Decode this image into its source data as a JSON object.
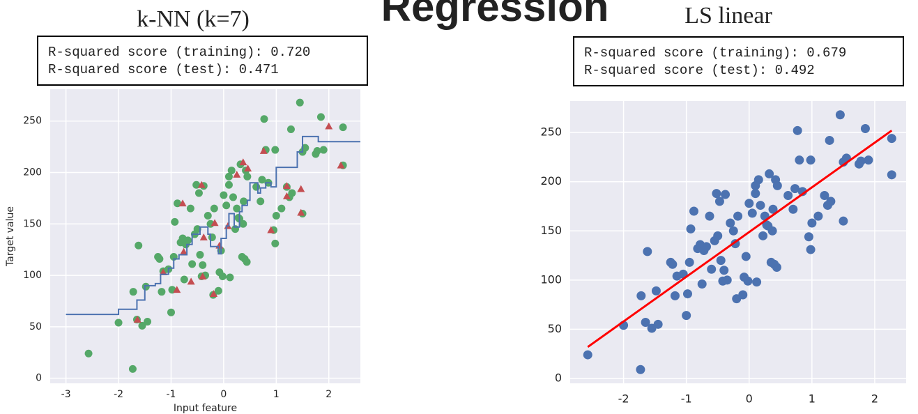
{
  "title": "Regression",
  "chart_data": [
    {
      "type": "scatter",
      "title": "k-NN (k=7)",
      "annotations": [
        "R-squared score (training): 0.720",
        "R-squared score (test): 0.471"
      ],
      "x_label": "Input feature",
      "y_label": "Target value",
      "xlim": [
        -3.3,
        2.6
      ],
      "ylim": [
        -5,
        281
      ],
      "xticks": [
        -3,
        -2,
        -1,
        0,
        1,
        2
      ],
      "yticks": [
        0,
        50,
        100,
        150,
        200,
        250
      ],
      "grid": true,
      "series": [
        {
          "kind": "scatter",
          "marker": "circle",
          "color": "#55a868",
          "x": [
            -2.57,
            -2.0,
            -1.73,
            -1.72,
            -1.65,
            -1.62,
            -1.55,
            -1.48,
            -1.45,
            -1.25,
            -1.22,
            -1.18,
            -1.15,
            -1.05,
            -1.0,
            -0.98,
            -0.95,
            -0.93,
            -0.88,
            -0.82,
            -0.78,
            -0.75,
            -0.72,
            -0.68,
            -0.63,
            -0.6,
            -0.55,
            -0.52,
            -0.5,
            -0.47,
            -0.45,
            -0.42,
            -0.4,
            -0.38,
            -0.35,
            -0.3,
            -0.25,
            -0.22,
            -0.2,
            -0.18,
            -0.1,
            -0.08,
            -0.05,
            -0.02,
            0.0,
            0.05,
            0.1,
            0.1,
            0.12,
            0.15,
            0.18,
            0.22,
            0.25,
            0.28,
            0.3,
            0.32,
            0.35,
            0.37,
            0.38,
            0.4,
            0.42,
            0.44,
            0.45,
            0.62,
            0.7,
            0.73,
            0.77,
            0.8,
            0.85,
            0.95,
            0.98,
            0.98,
            1.0,
            1.1,
            1.2,
            1.25,
            1.28,
            1.3,
            1.45,
            1.5,
            1.5,
            1.55,
            1.75,
            1.78,
            1.85,
            1.9,
            2.27,
            2.27
          ],
          "values": [
            24,
            54,
            9,
            84,
            57,
            129,
            51,
            89,
            55,
            118,
            116,
            84,
            104,
            106,
            64,
            86,
            118,
            152,
            170,
            132,
            136,
            96,
            130,
            134,
            165,
            111,
            140,
            188,
            145,
            180,
            120,
            99,
            110,
            187,
            100,
            158,
            150,
            137,
            81,
            165,
            85,
            103,
            124,
            99,
            178,
            168,
            196,
            188,
            98,
            202,
            176,
            145,
            165,
            156,
            155,
            208,
            118,
            150,
            172,
            116,
            202,
            113,
            196,
            186,
            172,
            193,
            252,
            222,
            190,
            144,
            222,
            131,
            158,
            165,
            186,
            176,
            242,
            180,
            268,
            220,
            160,
            224,
            218,
            221,
            254,
            222,
            244,
            207
          ]
        },
        {
          "kind": "scatter",
          "marker": "triangle",
          "color": "#c44e52",
          "x": [
            2.0,
            2.23,
            1.47,
            1.47,
            1.2,
            1.2,
            0.76,
            0.9,
            0.37,
            0.46,
            0.25,
            0.08,
            -0.19,
            -0.17,
            -0.42,
            -0.38,
            -0.76,
            -0.62,
            -0.4,
            -0.78,
            -0.89,
            -1.15,
            -1.64,
            -0.08
          ],
          "values": [
            245,
            207,
            184,
            161,
            187,
            177,
            221,
            144,
            210,
            204,
            198,
            148,
            82,
            151,
            188,
            137,
            123,
            94,
            99,
            170,
            86,
            103,
            57,
            129
          ]
        },
        {
          "kind": "line",
          "drawstyle": "steps-post",
          "color": "#4c72b0",
          "x": [
            -3,
            -2,
            -1.65,
            -1.5,
            -1.3,
            -1.2,
            -1.05,
            -0.95,
            -0.85,
            -0.7,
            -0.6,
            -0.45,
            -0.3,
            -0.25,
            -0.1,
            -0.05,
            0.05,
            0.1,
            0.2,
            0.3,
            0.35,
            0.45,
            0.5,
            0.65,
            0.7,
            0.8,
            0.9,
            1.0,
            1.2,
            1.4,
            1.5,
            1.8,
            2.6
          ],
          "values": [
            62,
            67,
            76,
            90,
            92,
            101,
            107,
            116,
            120,
            130,
            140,
            147,
            140,
            128,
            121,
            136,
            148,
            160,
            147,
            162,
            168,
            173,
            190,
            180,
            185,
            190,
            186,
            205,
            205,
            220,
            235,
            230,
            230
          ]
        }
      ]
    },
    {
      "type": "scatter",
      "title": "LS linear",
      "annotations": [
        "R-squared score (training): 0.679",
        "R-squared score (test): 0.492"
      ],
      "xlim": [
        -2.85,
        2.5
      ],
      "ylim": [
        -5,
        282
      ],
      "xticks": [
        -2,
        -1,
        0,
        1,
        2
      ],
      "yticks": [
        0,
        50,
        100,
        150,
        200,
        250
      ],
      "grid": true,
      "series": [
        {
          "kind": "scatter",
          "marker": "circle",
          "color": "#4c72b0",
          "x": [
            -2.57,
            -2.0,
            -1.73,
            -1.72,
            -1.65,
            -1.62,
            -1.55,
            -1.48,
            -1.45,
            -1.25,
            -1.22,
            -1.18,
            -1.15,
            -1.05,
            -1.0,
            -0.98,
            -0.95,
            -0.93,
            -0.88,
            -0.82,
            -0.78,
            -0.75,
            -0.72,
            -0.68,
            -0.63,
            -0.6,
            -0.55,
            -0.52,
            -0.5,
            -0.47,
            -0.45,
            -0.42,
            -0.4,
            -0.38,
            -0.35,
            -0.3,
            -0.25,
            -0.22,
            -0.2,
            -0.18,
            -0.1,
            -0.08,
            -0.05,
            -0.02,
            0.0,
            0.05,
            0.1,
            0.1,
            0.12,
            0.15,
            0.18,
            0.22,
            0.25,
            0.28,
            0.3,
            0.32,
            0.35,
            0.37,
            0.38,
            0.4,
            0.42,
            0.44,
            0.45,
            0.62,
            0.7,
            0.73,
            0.77,
            0.8,
            0.85,
            0.95,
            0.98,
            0.98,
            1.0,
            1.1,
            1.2,
            1.25,
            1.28,
            1.3,
            1.45,
            1.5,
            1.5,
            1.55,
            1.75,
            1.78,
            1.85,
            1.9,
            2.27,
            2.27
          ],
          "values": [
            24,
            54,
            9,
            84,
            57,
            129,
            51,
            89,
            55,
            118,
            116,
            84,
            104,
            106,
            64,
            86,
            118,
            152,
            170,
            132,
            136,
            96,
            130,
            134,
            165,
            111,
            140,
            188,
            145,
            180,
            120,
            99,
            110,
            187,
            100,
            158,
            150,
            137,
            81,
            165,
            85,
            103,
            124,
            99,
            178,
            168,
            196,
            188,
            98,
            202,
            176,
            145,
            165,
            156,
            155,
            208,
            118,
            150,
            172,
            116,
            202,
            113,
            196,
            186,
            172,
            193,
            252,
            222,
            190,
            144,
            222,
            131,
            158,
            165,
            186,
            176,
            242,
            180,
            268,
            220,
            160,
            224,
            218,
            221,
            254,
            222,
            244,
            207
          ]
        },
        {
          "kind": "line",
          "color": "#ff0000",
          "x": [
            -2.57,
            2.27
          ],
          "values": [
            32,
            252
          ]
        }
      ]
    }
  ]
}
